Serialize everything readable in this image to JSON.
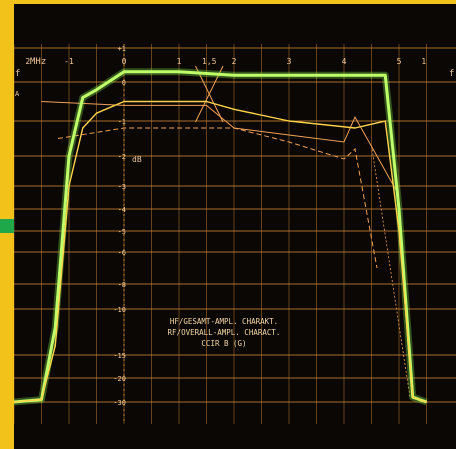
{
  "colors": {
    "frame": "#f2c21a",
    "screen": "#0a0704",
    "grid": "#d9903a",
    "trace_green": "#bfff6a",
    "trace_yellow": "#ffd44a",
    "ref_lines": "#f1a15a"
  },
  "labels": {
    "unit_mhz": "MHz",
    "unit_db": "dB",
    "f_left": "f",
    "f_right": "f",
    "f_sub": "A",
    "marker_15": "1,5"
  },
  "caption": {
    "line1": "HF/GESAMT-AMPL. CHARAKT.",
    "line2": "RF/OVERALL-AMPL. CHARACT.",
    "line3": "CCIR B (G)"
  },
  "chart_data": {
    "type": "line",
    "title": "",
    "xlabel": "MHz",
    "ylabel": "dB",
    "x_ticks": [
      "2",
      "-1",
      "0",
      "1",
      "2",
      "3",
      "4",
      "5",
      "1"
    ],
    "y_ticks": [
      "+1",
      "0",
      "-1",
      "-2",
      "-3",
      "-4",
      "-5",
      "-6",
      "-8",
      "-10",
      "-15",
      "-20",
      "-30"
    ],
    "xlim": [
      -2,
      5.5
    ],
    "ylim": [
      -30,
      1
    ],
    "series": [
      {
        "x": [
          -2,
          -1.5,
          -1.25,
          -1.0,
          -0.75,
          -0.5,
          0,
          1,
          2,
          3,
          4,
          4.75,
          5.0,
          5.25,
          5.5
        ],
        "y": [
          -30,
          -29,
          -12,
          -2,
          -0.4,
          -0.2,
          0.3,
          0.3,
          0.2,
          0.2,
          0.2,
          0.2,
          -4,
          -28,
          -30
        ]
      },
      {
        "x": [
          -2,
          -1.5,
          -1.25,
          -1.0,
          -0.75,
          -0.5,
          0,
          1.5,
          2,
          3,
          4.2,
          4.75,
          5.0,
          5.25,
          5.5
        ],
        "y": [
          -30,
          -29,
          -14,
          -3,
          -1.2,
          -0.8,
          -0.5,
          -0.5,
          -0.7,
          -1,
          -1.2,
          -1.0,
          -5,
          -28,
          -30
        ]
      }
    ]
  }
}
